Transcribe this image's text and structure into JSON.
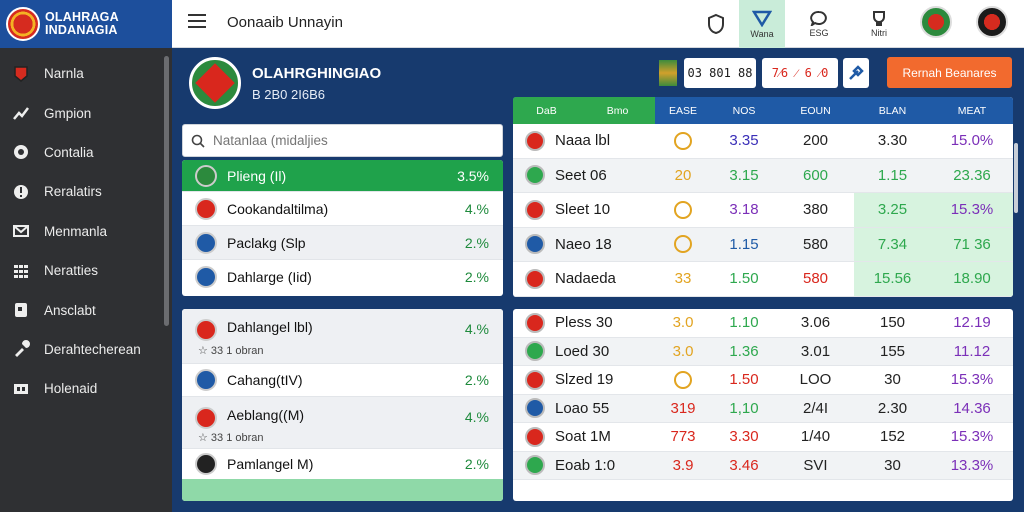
{
  "brand": {
    "line1": "OLAHRAGA",
    "line2": "INDANAGIA"
  },
  "sidebar": {
    "items": [
      {
        "label": "Narnla",
        "icon": "team-badge-icon"
      },
      {
        "label": "Gmpion",
        "icon": "trend-icon"
      },
      {
        "label": "Contalia",
        "icon": "ball-icon"
      },
      {
        "label": "Reralatirs",
        "icon": "info-icon"
      },
      {
        "label": "Menmanla",
        "icon": "mail-icon"
      },
      {
        "label": "Neratties",
        "icon": "grid-icon"
      },
      {
        "label": "Ansclabt",
        "icon": "card-icon"
      },
      {
        "label": "Derahtecherean",
        "icon": "tool-icon"
      },
      {
        "label": "Holenaid",
        "icon": "ticket-icon"
      }
    ]
  },
  "topbar": {
    "title": "Oonaaib Unnayin",
    "icons": [
      {
        "name": "shield-icon",
        "label": ""
      },
      {
        "name": "check-shield-icon",
        "label": "Wana"
      },
      {
        "name": "chat-icon",
        "label": "ESG"
      },
      {
        "name": "trophy-icon",
        "label": "Nitri"
      }
    ]
  },
  "match": {
    "name": "OLAHRGHINGIAO",
    "sub": "B 2B0 2I6B6",
    "score1": "03 801 88",
    "score2": "7⁄6 ⁄ 6 ⁄0",
    "cta": "Rernah Beanares"
  },
  "search": {
    "placeholder": "Natanlaa (midaljies"
  },
  "panel1": [
    {
      "name": "Plieng (Il)",
      "pct": "3.5%",
      "style": "hl"
    },
    {
      "name": "Cookandaltilma)",
      "pct": "4.%",
      "style": ""
    },
    {
      "name": "Paclakg (Slp",
      "pct": "2.%",
      "style": "alt"
    },
    {
      "name": "Dahlarge (Iid)",
      "pct": "2.%",
      "style": ""
    }
  ],
  "panel2": [
    {
      "name": "Dahlangel lbl)",
      "pct": "4.%",
      "extra": "☆ 33 1 obran",
      "style": "alt"
    },
    {
      "name": "Cahang(tIV)",
      "pct": "2.%",
      "extra": "",
      "style": ""
    },
    {
      "name": "Aeblang((M)",
      "pct": "4.%",
      "extra": "☆ 33 1 obran",
      "style": "alt"
    },
    {
      "name": "Pamlangel M)",
      "pct": "2.%",
      "extra": "",
      "style": ""
    }
  ],
  "table": {
    "headers": [
      "DaB",
      "Bmo",
      "EASE",
      "NOS",
      "EOUN",
      "BLAN",
      "MEAT"
    ],
    "rows": [
      {
        "name": "Naaa lbl",
        "v": [
          "3.35",
          "200",
          "3.30",
          "15.0%"
        ],
        "colors": [
          "#3a2fb8",
          "#222",
          "#222",
          "#7b2fb8"
        ],
        "style": ""
      },
      {
        "name": "Seet 06",
        "v": [
          "20",
          "3.15",
          "600",
          "1.15",
          "23.36"
        ],
        "colors": [
          "#e2a421",
          "#2ea84e",
          "#2ea84e",
          "#2ea84e",
          "#2ea84e"
        ],
        "style": "alt"
      },
      {
        "name": "Sleet 10",
        "v": [
          "3.18",
          "380",
          "3.25",
          "15.3%"
        ],
        "colors": [
          "#7b2fb8",
          "#222",
          "#2ea84e",
          "#7b2fb8"
        ],
        "style": ""
      },
      {
        "name": "Naeo 18",
        "v": [
          "1.15",
          "580",
          "7.34",
          "71 36"
        ],
        "colors": [
          "#1f5aa6",
          "#222",
          "#2ea84e",
          "#2ea84e"
        ],
        "style": "alt"
      },
      {
        "name": "Nadaeda",
        "v": [
          "33",
          "1.50",
          "580",
          "15.56",
          "18.90"
        ],
        "colors": [
          "#e2a421",
          "#2ea84e",
          "#d9271d",
          "#2ea84e",
          "#2ea84e"
        ],
        "style": ""
      }
    ],
    "rows2": [
      {
        "name": "Pless 30",
        "v": [
          "3.0",
          "1.10",
          "3.06",
          "150",
          "12.19"
        ],
        "colors": [
          "#e2a421",
          "#2ea84e",
          "#222",
          "#222",
          "#7b2fb8"
        ]
      },
      {
        "name": "Loed 30",
        "v": [
          "3.0",
          "1.36",
          "3.01",
          "155",
          "11.12"
        ],
        "colors": [
          "#e2a421",
          "#2ea84e",
          "#222",
          "#222",
          "#7b2fb8"
        ]
      },
      {
        "name": "Slzed 19",
        "v": [
          "1.50",
          "LOO",
          "30",
          "15.3%"
        ],
        "colors": [
          "#d9271d",
          "#222",
          "#222",
          "#7b2fb8"
        ]
      },
      {
        "name": "Loao 55",
        "v": [
          "319",
          "1,10",
          "2/4I",
          "2.30",
          "14.36"
        ],
        "colors": [
          "#d9271d",
          "#2ea84e",
          "#222",
          "#222",
          "#7b2fb8"
        ]
      },
      {
        "name": "Soat 1M",
        "v": [
          "773",
          "3.30",
          "1/40",
          "152",
          "15.3%"
        ],
        "colors": [
          "#d9271d",
          "#d9271d",
          "#222",
          "#222",
          "#7b2fb8"
        ]
      },
      {
        "name": "Eoab 1:0",
        "v": [
          "3.9",
          "3.46",
          "SVI",
          "30",
          "13.3%"
        ],
        "colors": [
          "#d9271d",
          "#d9271d",
          "#222",
          "#222",
          "#7b2fb8"
        ]
      }
    ]
  }
}
